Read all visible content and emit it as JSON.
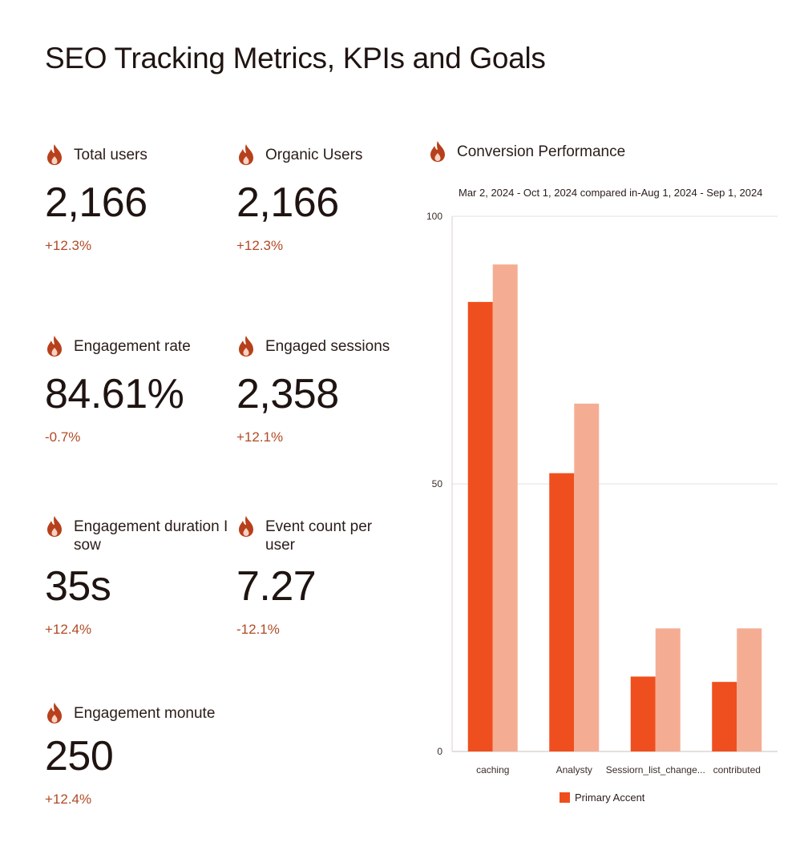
{
  "page": {
    "title": "SEO Tracking Metrics, KPIs and Goals"
  },
  "colors": {
    "accent": "#ef4f1e",
    "accent_light": "#f4ad93",
    "icon": "#b7401c",
    "change": "#b04a26"
  },
  "metrics": [
    {
      "icon": "flame-icon",
      "label": "Total users",
      "value": "2,166",
      "change": "+12.3%"
    },
    {
      "icon": "flame-icon",
      "label": "Organic Users",
      "value": "2,166",
      "change": "+12.3%"
    },
    {
      "icon": "flame-icon",
      "label": "Engagement rate",
      "value": "84.61%",
      "change": "-0.7%"
    },
    {
      "icon": "flame-icon",
      "label": "Engaged sessions",
      "value": "2,358",
      "change": "+12.1%"
    },
    {
      "icon": "flame-icon",
      "label": "Engagement duration I sow",
      "value": "35s",
      "change": "+12.4%"
    },
    {
      "icon": "flame-icon",
      "label": "Event count per user",
      "value": "7.27",
      "change": "-12.1%"
    },
    {
      "icon": "flame-icon",
      "label": "Engagement monute",
      "value": "250",
      "change": "+12.4%"
    }
  ],
  "chart": {
    "icon": "flame-icon",
    "title": "Conversion Performance",
    "subtitle": "Mar 2, 2024 - Oct 1, 2024 compared in-Aug 1, 2024 - Sep 1, 2024",
    "legend_label": "Primary Accent"
  },
  "chart_data": {
    "type": "bar",
    "title": "Conversion Performance",
    "subtitle": "Mar 2, 2024 - Oct 1, 2024 compared in-Aug 1, 2024 - Sep 1, 2024",
    "categories": [
      "caching",
      "Analysty",
      "Sessiorn_list_change...",
      "contributed"
    ],
    "series": [
      {
        "name": "Primary Accent",
        "color": "#ef4f1e",
        "values": [
          84,
          52,
          14,
          13
        ]
      },
      {
        "color": "#f4ad93",
        "values": [
          91,
          65,
          23,
          23
        ]
      }
    ],
    "ylim": [
      0,
      100
    ],
    "yticks": [
      0,
      50,
      100
    ],
    "grid": true,
    "legend": "bottom"
  }
}
